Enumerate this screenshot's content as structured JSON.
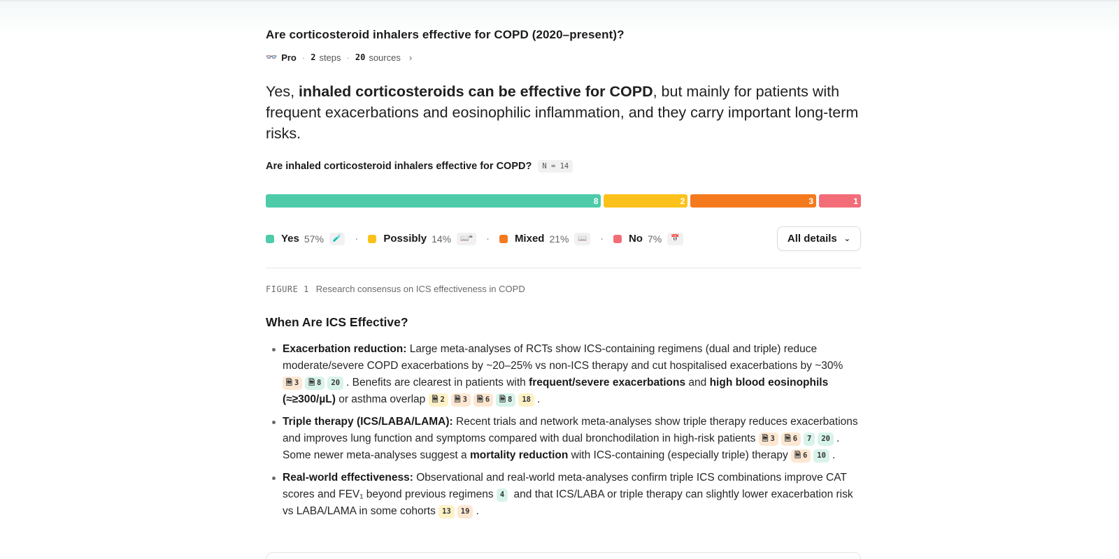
{
  "query": {
    "title": "Are corticosteroid inhalers effective for COPD (2020–present)?"
  },
  "meta": {
    "mode_icon": "binoculars-icon",
    "mode": "Pro",
    "steps_count": "2",
    "steps_label": "steps",
    "sources_count": "20",
    "sources_label": "sources"
  },
  "answer": {
    "lead": "Yes, ",
    "bold": "inhaled corticosteroids can be effective for COPD",
    "rest": ", but mainly for patients with frequent exacerbations and eosinophilic inflammation, and they carry important long-term risks."
  },
  "figure": {
    "question": "Are inhaled corticosteroid inhalers effective for COPD?",
    "n_badge": "N = 14",
    "figure_label": "FIGURE 1",
    "caption": "Research consensus on ICS effectiveness in COPD",
    "details_button": "All details"
  },
  "chart_data": {
    "type": "bar",
    "orientation": "horizontal-stacked",
    "categories": [
      "Yes",
      "Possibly",
      "Mixed",
      "No"
    ],
    "values": [
      8,
      2,
      3,
      1
    ],
    "percent_labels": [
      "57%",
      "14%",
      "21%",
      "7%"
    ],
    "colors": [
      "#4ecba9",
      "#fcc21b",
      "#f57a1e",
      "#f26d78"
    ],
    "total": 14
  },
  "section": {
    "heading": "When Are ICS Effective?",
    "bullets": [
      {
        "title": "Exacerbation reduction:",
        "text1": " Large meta-analyses of RCTs show ICS-containing regimens (dual and triple) reduce moderate/severe COPD exacerbations by ~20–25% vs non-ICS therapy and cut hospitalised exacerbations by ~30% ",
        "cites1": [
          "3",
          "8",
          "20"
        ],
        "text2": ". Benefits are clearest in patients with ",
        "bold2": "frequent/severe exacerbations",
        "text3": " and ",
        "bold3": "high blood eosinophils (≈≥300/µL)",
        "text4": " or asthma overlap ",
        "cites2": [
          "2",
          "3",
          "6",
          "8",
          "18"
        ],
        "end": "."
      },
      {
        "title": "Triple therapy (ICS/LABA/LAMA):",
        "text1": " Recent trials and network meta-analyses show triple therapy reduces exacerbations and improves lung function and symptoms compared with dual bronchodilation in high-risk patients ",
        "cites1": [
          "3",
          "6",
          "7",
          "20"
        ],
        "text2": ". Some newer meta-analyses suggest a ",
        "bold2": "mortality reduction",
        "text3": " with ICS-containing (especially triple) therapy ",
        "cites2": [
          "6",
          "10"
        ],
        "end": "."
      },
      {
        "title": "Real-world effectiveness:",
        "text1": " Observational and real-world meta-analyses confirm triple ICS combinations improve CAT scores and FEV₁ beyond previous regimens ",
        "cites1": [
          "4"
        ],
        "text2": " and that ICS/LABA or triple therapy can slightly lower exacerbation risk vs LABA/LAMA in some cohorts ",
        "cites2": [
          "13",
          "19"
        ],
        "end": "."
      }
    ]
  }
}
